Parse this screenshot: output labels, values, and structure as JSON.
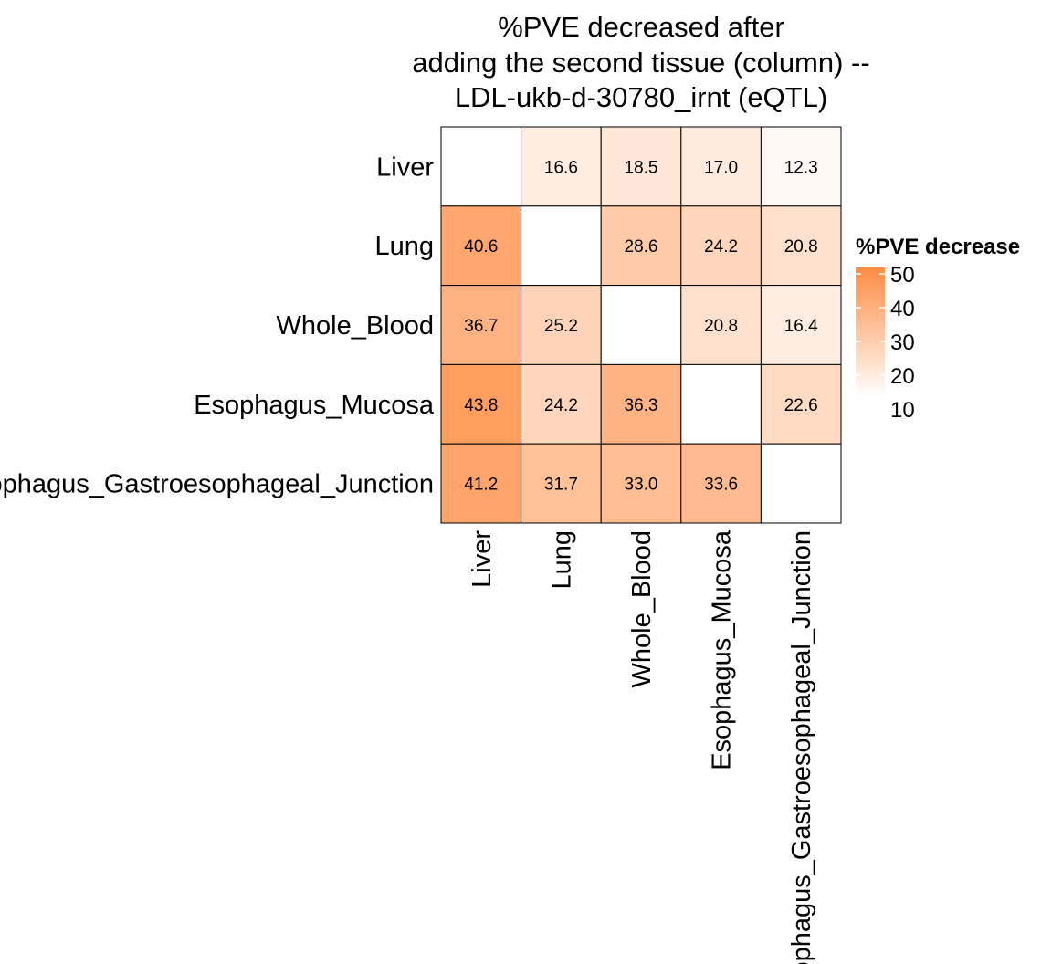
{
  "chart_data": {
    "type": "heatmap",
    "title": [
      "%PVE decreased after",
      "adding the second tissue (column) --",
      "LDL-ukb-d-30780_irnt (eQTL)"
    ],
    "rows": [
      "Liver",
      "Lung",
      "Whole_Blood",
      "Esophagus_Mucosa",
      "Esophagus_Gastroesophageal_Junction"
    ],
    "columns": [
      "Liver",
      "Lung",
      "Whole_Blood",
      "Esophagus_Mucosa",
      "Esophagus_Gastroesophageal_Junction"
    ],
    "values": [
      [
        null,
        16.6,
        18.5,
        17.0,
        12.3
      ],
      [
        40.6,
        null,
        28.6,
        24.2,
        20.8
      ],
      [
        36.7,
        25.2,
        null,
        20.8,
        16.4
      ],
      [
        43.8,
        24.2,
        36.3,
        null,
        22.6
      ],
      [
        41.2,
        31.7,
        33.0,
        33.6,
        null
      ]
    ],
    "legend": {
      "title": "%PVE decrease",
      "ticks": [
        50,
        40,
        30,
        20,
        10
      ],
      "range": [
        10,
        50
      ],
      "color_low": "#ffffff",
      "color_high": "#ff8c42"
    }
  }
}
